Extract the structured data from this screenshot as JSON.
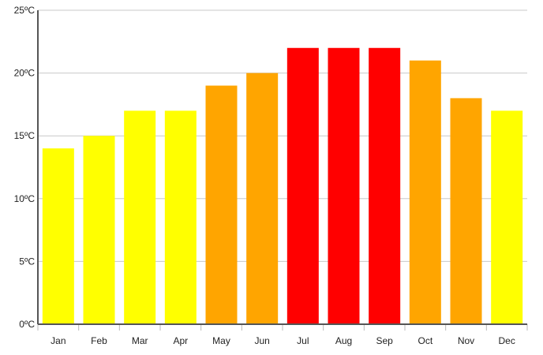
{
  "chart_data": {
    "type": "bar",
    "categories": [
      "Jan",
      "Feb",
      "Mar",
      "Apr",
      "May",
      "Jun",
      "Jul",
      "Aug",
      "Sep",
      "Oct",
      "Nov",
      "Dec"
    ],
    "values": [
      14,
      15,
      17,
      17,
      19,
      20,
      22,
      22,
      22,
      21,
      18,
      17
    ],
    "bar_colors": [
      "#ffff00",
      "#ffff00",
      "#ffff00",
      "#ffff00",
      "#ffa500",
      "#ffa500",
      "#ff0000",
      "#ff0000",
      "#ff0000",
      "#ffa500",
      "#ffa500",
      "#ffff00"
    ],
    "ylim": [
      0,
      25
    ],
    "yticks": [
      0,
      5,
      10,
      15,
      20,
      25
    ],
    "ytick_labels": [
      "0ºC",
      "5ºC",
      "10ºC",
      "15ºC",
      "20ºC",
      "25ºC"
    ],
    "grid": true,
    "grid_color": "#c8c8c8",
    "axis_color": "#555555"
  }
}
